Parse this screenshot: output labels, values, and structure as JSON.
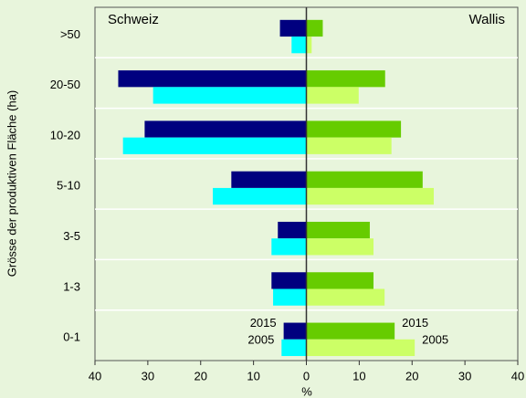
{
  "chart_data": {
    "type": "bar",
    "orientation": "horizontal",
    "annotations": [
      "Schweiz",
      "Wallis"
    ],
    "xlabel": "%",
    "ylabel": "Grösse der produktiven Fläche (ha)",
    "categories": [
      ">50",
      "20-50",
      "10-20",
      "5-10",
      "3-5",
      "1-3",
      "0-1"
    ],
    "series": [
      {
        "name": "2015",
        "color": "#00007f",
        "values": [
          -5.0,
          -35.6,
          -30.6,
          -14.2,
          -5.4,
          -6.6,
          -4.3
        ]
      },
      {
        "name": "2005",
        "color": "#00ffff",
        "values": [
          -2.8,
          -29.0,
          -34.7,
          -17.7,
          -6.6,
          -6.3,
          -4.7
        ]
      },
      {
        "name": "2015",
        "color": "#66cc00",
        "values": [
          3.1,
          14.9,
          17.9,
          22.0,
          12.0,
          12.7,
          16.7
        ]
      },
      {
        "name": "2005",
        "color": "#ccff66",
        "values": [
          1.0,
          9.9,
          16.1,
          24.1,
          12.7,
          14.8,
          20.5
        ]
      }
    ],
    "xlim": [
      -40,
      40
    ],
    "xticks": [
      {
        "value": -40,
        "label": "40"
      },
      {
        "value": -30,
        "label": "30"
      },
      {
        "value": -20,
        "label": "20"
      },
      {
        "value": -10,
        "label": "10"
      },
      0,
      10,
      20,
      30,
      40
    ]
  }
}
